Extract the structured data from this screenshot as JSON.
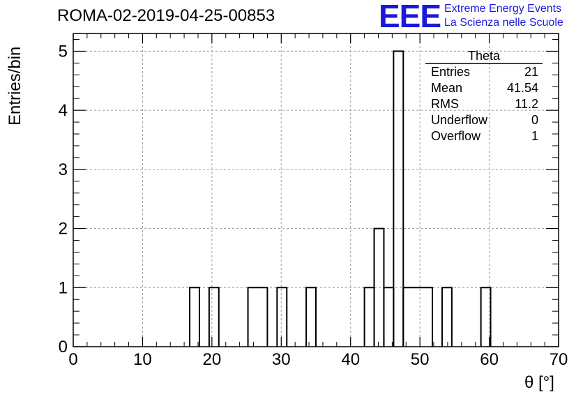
{
  "header": {
    "title": "ROMA-02-2019-04-25-00853"
  },
  "logo": {
    "mark": "EEE",
    "line1": "Extreme Energy Events",
    "line2": "La Scienza nelle Scuole"
  },
  "stats": {
    "title": "Theta",
    "rows": [
      {
        "label": "Entries",
        "value": "21"
      },
      {
        "label": "Mean",
        "value": "41.54"
      },
      {
        "label": "RMS",
        "value": "11.2"
      },
      {
        "label": "Underflow",
        "value": "0"
      },
      {
        "label": "Overflow",
        "value": "1"
      }
    ]
  },
  "chart_data": {
    "type": "bar",
    "title": "ROMA-02-2019-04-25-00853",
    "xlabel": "θ [°]",
    "ylabel": "Entries/bin",
    "xlim": [
      0,
      70
    ],
    "ylim": [
      0,
      5.3
    ],
    "grid": true,
    "xticks": [
      0,
      10,
      20,
      30,
      40,
      50,
      60,
      70
    ],
    "yticks": [
      0,
      1,
      2,
      3,
      4,
      5
    ],
    "bins": [
      {
        "x0": 16.8,
        "x1": 18.2,
        "value": 1
      },
      {
        "x0": 19.6,
        "x1": 21.0,
        "value": 1
      },
      {
        "x0": 25.2,
        "x1": 28.0,
        "value": 1
      },
      {
        "x0": 29.4,
        "x1": 30.8,
        "value": 1
      },
      {
        "x0": 33.6,
        "x1": 35.0,
        "value": 1
      },
      {
        "x0": 42.0,
        "x1": 43.4,
        "value": 1
      },
      {
        "x0": 43.4,
        "x1": 44.8,
        "value": 2
      },
      {
        "x0": 44.8,
        "x1": 46.2,
        "value": 1
      },
      {
        "x0": 46.2,
        "x1": 47.6,
        "value": 5
      },
      {
        "x0": 47.6,
        "x1": 51.8,
        "value": 1
      },
      {
        "x0": 53.2,
        "x1": 54.6,
        "value": 1
      },
      {
        "x0": 58.8,
        "x1": 60.2,
        "value": 1
      }
    ]
  }
}
